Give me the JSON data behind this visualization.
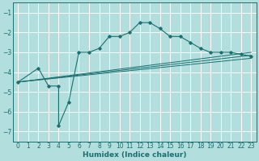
{
  "xlabel": "Humidex (Indice chaleur)",
  "ylabel": "",
  "xlim": [
    -0.5,
    23.5
  ],
  "ylim": [
    -7.5,
    -0.5
  ],
  "yticks": [
    -7,
    -6,
    -5,
    -4,
    -3,
    -2,
    -1
  ],
  "xticks": [
    0,
    1,
    2,
    3,
    4,
    5,
    6,
    7,
    8,
    9,
    10,
    11,
    12,
    13,
    14,
    15,
    16,
    17,
    18,
    19,
    20,
    21,
    22,
    23
  ],
  "bg_color": "#b2dede",
  "grid_color": "#ffffff",
  "line_color": "#1a7070",
  "main_line": {
    "x": [
      0,
      2,
      3,
      4,
      4,
      5,
      6,
      7,
      8,
      9,
      10,
      11,
      12,
      13,
      14,
      15,
      16,
      17,
      18,
      19,
      20,
      21,
      22,
      23
    ],
    "y": [
      -4.5,
      -3.8,
      -4.7,
      -4.7,
      -6.7,
      -5.5,
      -3.0,
      -3.0,
      -2.8,
      -2.2,
      -2.2,
      -2.0,
      -1.5,
      -1.5,
      -1.8,
      -2.2,
      -2.2,
      -2.5,
      -2.8,
      -3.0,
      -3.0,
      -3.0,
      -3.1,
      -3.2
    ]
  },
  "trend_lines": [
    {
      "x": [
        0,
        23
      ],
      "y": [
        -4.5,
        -3.0
      ]
    },
    {
      "x": [
        0,
        23
      ],
      "y": [
        -4.5,
        -3.15
      ]
    },
    {
      "x": [
        0,
        23
      ],
      "y": [
        -4.5,
        -3.3
      ]
    }
  ],
  "tick_fontsize": 5.5,
  "xlabel_fontsize": 6.5,
  "xlabel_fontweight": "bold"
}
